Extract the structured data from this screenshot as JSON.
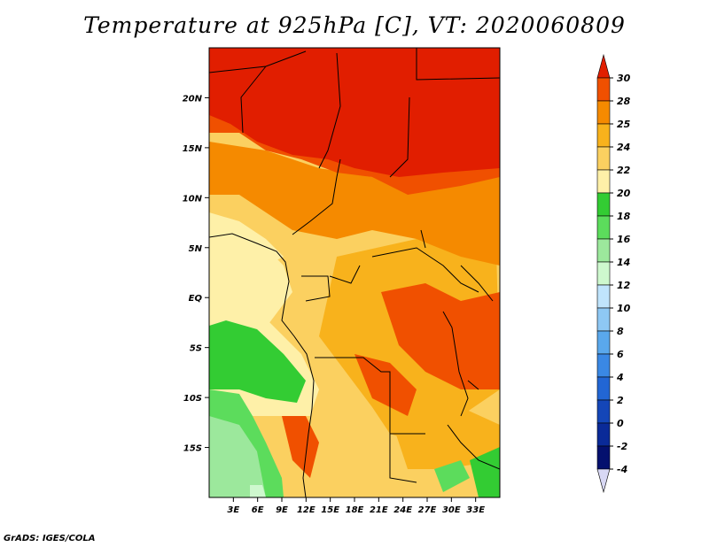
{
  "title": "Temperature at 925hPa [C], VT: 2020060809",
  "footer": "GrADS: IGES/COLA",
  "map": {
    "lon_range": [
      0,
      36
    ],
    "lat_range": [
      -20,
      25
    ],
    "lat_ticks": [
      "20N",
      "15N",
      "10N",
      "5N",
      "EQ",
      "5S",
      "10S",
      "15S"
    ],
    "lat_tick_values": [
      20,
      15,
      10,
      5,
      0,
      -5,
      -10,
      -15
    ],
    "lon_ticks": [
      "3E",
      "6E",
      "9E",
      "12E",
      "15E",
      "18E",
      "21E",
      "24E",
      "27E",
      "30E",
      "33E"
    ],
    "lon_tick_values": [
      3,
      6,
      9,
      12,
      15,
      18,
      21,
      24,
      27,
      30,
      33
    ]
  },
  "colorbar": {
    "labels": [
      "30",
      "28",
      "25",
      "24",
      "22",
      "20",
      "18",
      "16",
      "14",
      "12",
      "10",
      "8",
      "6",
      "4",
      "2",
      "0",
      "-2",
      "-4"
    ],
    "colors": [
      "#e11e00",
      "#f05000",
      "#f58a00",
      "#f8b21c",
      "#fbd060",
      "#fef0a8",
      "#33cc33",
      "#5cdc5c",
      "#9ce89c",
      "#cef8ce",
      "#c0e4fc",
      "#8ec8f4",
      "#5aa8ec",
      "#3a88e4",
      "#2266d4",
      "#1446b8",
      "#0a2a98",
      "#04106e",
      "#d8d8f4"
    ]
  }
}
